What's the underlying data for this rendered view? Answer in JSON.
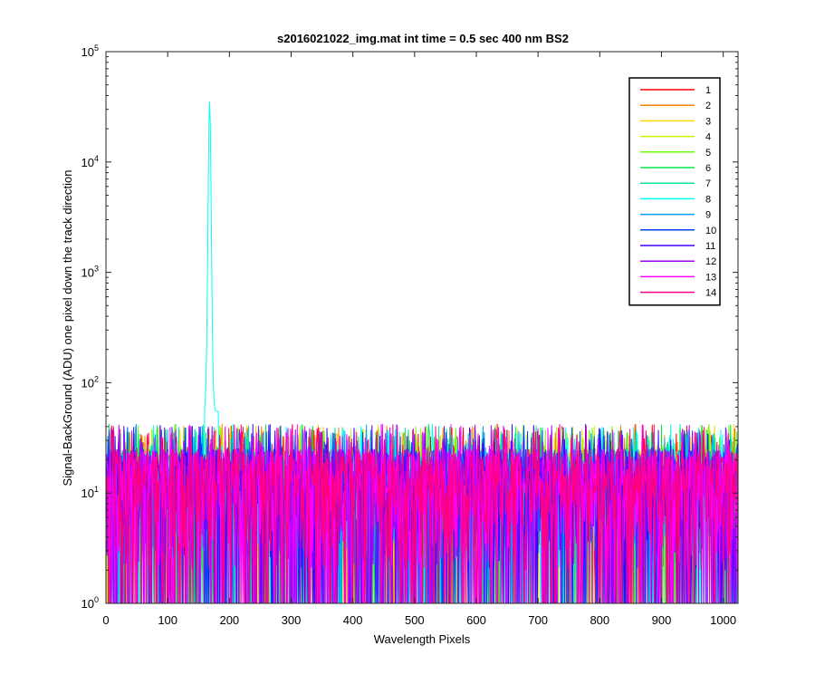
{
  "chart_data": {
    "type": "line",
    "title": "s2016021022_img.mat int time = 0.5 sec  400 nm BS2",
    "xlabel": "Wavelength Pixels",
    "ylabel": "Signal-BackGround (ADU) one pixel down the track direction",
    "xlim": [
      0,
      1024
    ],
    "ylim": [
      1,
      100000
    ],
    "yscale": "log",
    "grid": false,
    "legend_position": "top-right",
    "x_ticks": [
      0,
      100,
      200,
      300,
      400,
      500,
      600,
      700,
      800,
      900,
      1000
    ],
    "x_tick_labels": [
      "0",
      "100",
      "200",
      "300",
      "400",
      "500",
      "600",
      "700",
      "800",
      "900",
      "1000"
    ],
    "y_ticks": [
      1,
      10,
      100,
      1000,
      10000,
      100000
    ],
    "y_tick_labels": [
      {
        "base": "10",
        "exp": "0"
      },
      {
        "base": "10",
        "exp": "1"
      },
      {
        "base": "10",
        "exp": "2"
      },
      {
        "base": "10",
        "exp": "3"
      },
      {
        "base": "10",
        "exp": "4"
      },
      {
        "base": "10",
        "exp": "5"
      }
    ],
    "noise_band": {
      "min": 1,
      "typical_max": 25,
      "max": 42
    },
    "peak": {
      "series": "8",
      "x": 168,
      "y": 35000,
      "base_x_range": [
        160,
        182
      ],
      "base_y": 55
    },
    "series": [
      {
        "name": "1",
        "color": "#ff0000"
      },
      {
        "name": "2",
        "color": "#ff8000"
      },
      {
        "name": "3",
        "color": "#ffd400"
      },
      {
        "name": "4",
        "color": "#c8f000"
      },
      {
        "name": "5",
        "color": "#6aff00"
      },
      {
        "name": "6",
        "color": "#00e84a"
      },
      {
        "name": "7",
        "color": "#00e8a0"
      },
      {
        "name": "8",
        "color": "#00ffff"
      },
      {
        "name": "9",
        "color": "#00a0ff"
      },
      {
        "name": "10",
        "color": "#0040ff"
      },
      {
        "name": "11",
        "color": "#4000ff"
      },
      {
        "name": "12",
        "color": "#a000ff"
      },
      {
        "name": "13",
        "color": "#ff00ff"
      },
      {
        "name": "14",
        "color": "#ff0080"
      }
    ]
  }
}
